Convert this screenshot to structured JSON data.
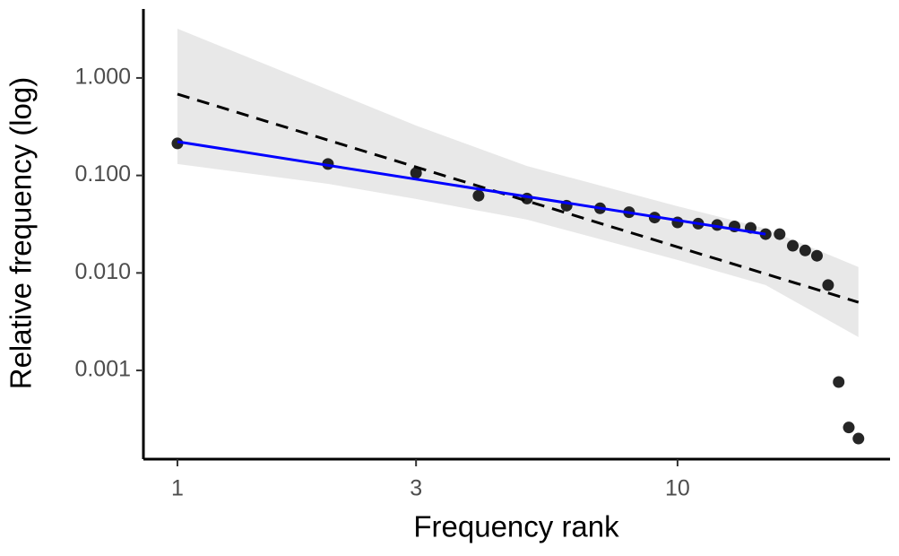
{
  "chart_data": {
    "type": "scatter",
    "x_label": "Frequency rank",
    "y_label": "Relative frequency (log)",
    "log_x": true,
    "log_y": true,
    "x": [
      1,
      2,
      3,
      4,
      5,
      6,
      7,
      8,
      9,
      10,
      11,
      12,
      13,
      14,
      15,
      16,
      17,
      18,
      19,
      20,
      21,
      22,
      23
    ],
    "values": [
      0.213,
      0.131,
      0.106,
      0.062,
      0.058,
      0.049,
      0.046,
      0.042,
      0.037,
      0.033,
      0.032,
      0.031,
      0.03,
      0.029,
      0.025,
      0.025,
      0.019,
      0.017,
      0.015,
      0.0075,
      0.00076,
      0.00026,
      0.0002
    ],
    "color": "#000000",
    "band": {
      "x": [
        1,
        2,
        3,
        5,
        10,
        15,
        23
      ],
      "upper": [
        3.2,
        0.759,
        0.325,
        0.125,
        0.0483,
        0.0285,
        0.0115
      ],
      "lower": [
        0.131,
        0.082,
        0.0573,
        0.0352,
        0.0136,
        0.0075,
        0.0022
      ],
      "color": "#e0e0e0"
    },
    "lines": [
      {
        "x": [
          1,
          23
        ],
        "values": [
          0.683,
          0.005
        ],
        "color": "#000000",
        "dashed": true
      },
      {
        "x": [
          1,
          15
        ],
        "values": [
          0.222,
          0.025
        ],
        "color": "#0000ff",
        "dashed": false
      }
    ],
    "xlim": [
      0.855,
      26.6
    ],
    "ylim": [
      0.000123,
      5.1
    ],
    "xticks": [
      1,
      3,
      10
    ],
    "yticks": [
      {
        "value": 1,
        "label": "1.000"
      },
      {
        "value": 0.1,
        "label": "0.100"
      },
      {
        "value": 0.01,
        "label": "0.010"
      },
      {
        "value": 0.001,
        "label": "0.001"
      }
    ],
    "grid": false
  }
}
